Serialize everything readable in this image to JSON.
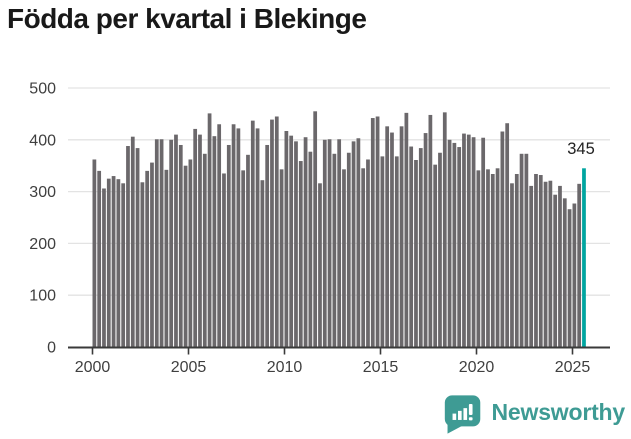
{
  "title": "Födda per kvartal i Blekinge",
  "branding": {
    "name": "Newsworthy",
    "icon": "newsworthy-speech-bubble-chart-icon"
  },
  "colors": {
    "background": "#ffffff",
    "bar": "#6b686b",
    "highlight": "#00a5a0",
    "gridline": "#e3e3e3",
    "axis": "#3a3a3a",
    "tick_label": "#3f3f3f",
    "title": "#191919",
    "value_label": "#222222",
    "brand": "#3e9b94"
  },
  "chart_data": {
    "type": "bar",
    "title": "Födda per kvartal i Blekinge",
    "period": "quarterly",
    "start_quarter": "2000 Q1",
    "end_quarter": "2025 Q3",
    "x_tick_labels": [
      "2000",
      "2005",
      "2010",
      "2015",
      "2020",
      "2025"
    ],
    "y_ticks": [
      0,
      100,
      200,
      300,
      400,
      500
    ],
    "ylim": [
      0,
      500
    ],
    "grid": true,
    "legend": "none",
    "values": [
      362,
      340,
      306,
      325,
      330,
      324,
      316,
      388,
      406,
      384,
      318,
      340,
      356,
      401,
      401,
      342,
      400,
      410,
      390,
      350,
      362,
      421,
      410,
      373,
      451,
      407,
      430,
      335,
      390,
      430,
      422,
      341,
      371,
      437,
      422,
      322,
      390,
      439,
      445,
      343,
      417,
      408,
      397,
      359,
      405,
      377,
      455,
      316,
      400,
      401,
      373,
      401,
      343,
      375,
      397,
      403,
      345,
      362,
      442,
      445,
      368,
      426,
      414,
      368,
      426,
      452,
      387,
      361,
      384,
      413,
      448,
      352,
      375,
      453,
      400,
      394,
      386,
      412,
      410,
      405,
      341,
      404,
      343,
      334,
      345,
      416,
      432,
      316,
      334,
      373,
      373,
      311,
      334,
      332,
      319,
      321,
      294,
      311,
      287,
      266,
      277,
      315,
      345
    ],
    "highlight_last_bar": true,
    "last_value": 345,
    "last_value_label": "345"
  }
}
